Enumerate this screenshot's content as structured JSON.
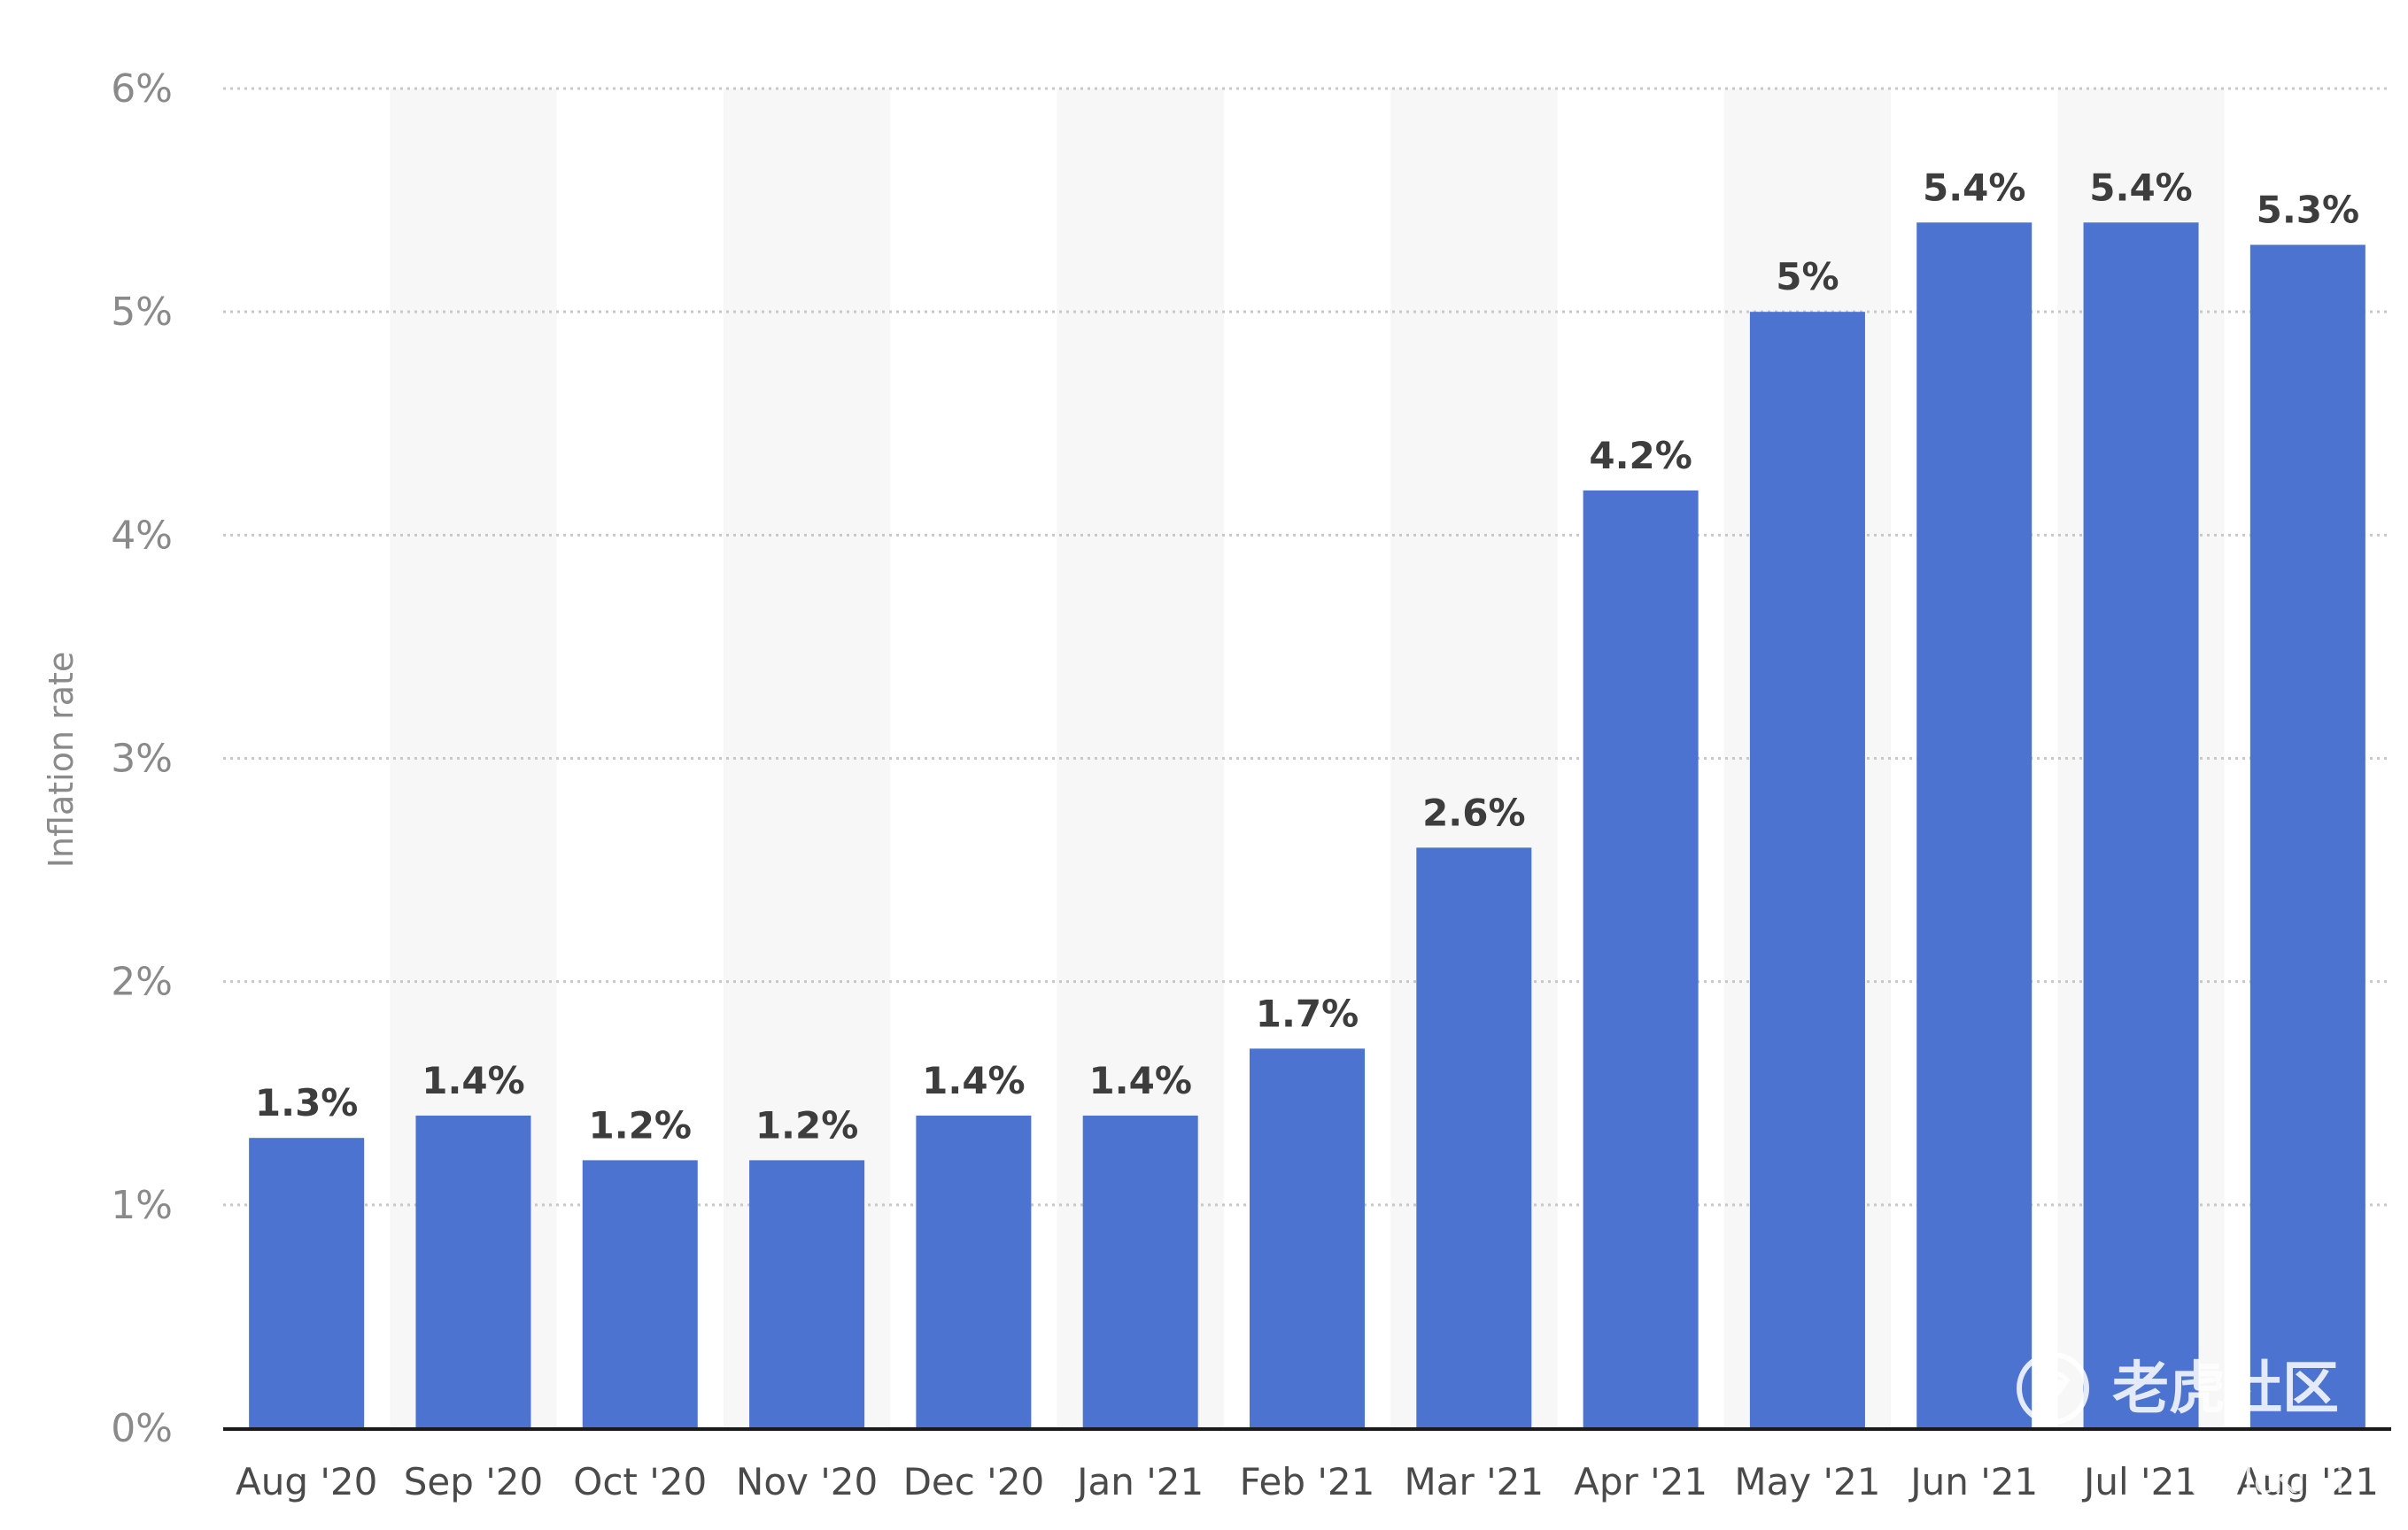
{
  "chart_data": {
    "type": "bar",
    "categories": [
      "Aug '20",
      "Sep '20",
      "Oct '20",
      "Nov '20",
      "Dec '20",
      "Jan '21",
      "Feb '21",
      "Mar '21",
      "Apr '21",
      "May '21",
      "Jun '21",
      "Jul '21",
      "Aug '21"
    ],
    "values": [
      1.3,
      1.4,
      1.2,
      1.2,
      1.4,
      1.4,
      1.7,
      2.6,
      4.2,
      5.0,
      5.4,
      5.4,
      5.3
    ],
    "data_labels": [
      "1.3%",
      "1.4%",
      "1.2%",
      "1.2%",
      "1.4%",
      "1.4%",
      "1.7%",
      "2.6%",
      "4.2%",
      "5%",
      "5.4%",
      "5.4%",
      "5.3%"
    ],
    "ylabel": "Inflation rate",
    "xlabel": "",
    "ylim": [
      0,
      6
    ],
    "yticks": [
      0,
      1,
      2,
      3,
      4,
      5,
      6
    ],
    "ytick_labels": [
      "0%",
      "1%",
      "2%",
      "3%",
      "4%",
      "5%",
      "6%"
    ],
    "grid": "horizontal-dotted",
    "legend": "none",
    "colors": {
      "bar": "#4b73cf",
      "alt_column_band": "#f7f7f7",
      "grid": "#c8c8c8",
      "baseline": "#1a1a1a"
    }
  },
  "watermark": {
    "logo_text": "老虎社区",
    "credit": "@McKiwi",
    "icon": "tiger-community-logo-icon"
  }
}
